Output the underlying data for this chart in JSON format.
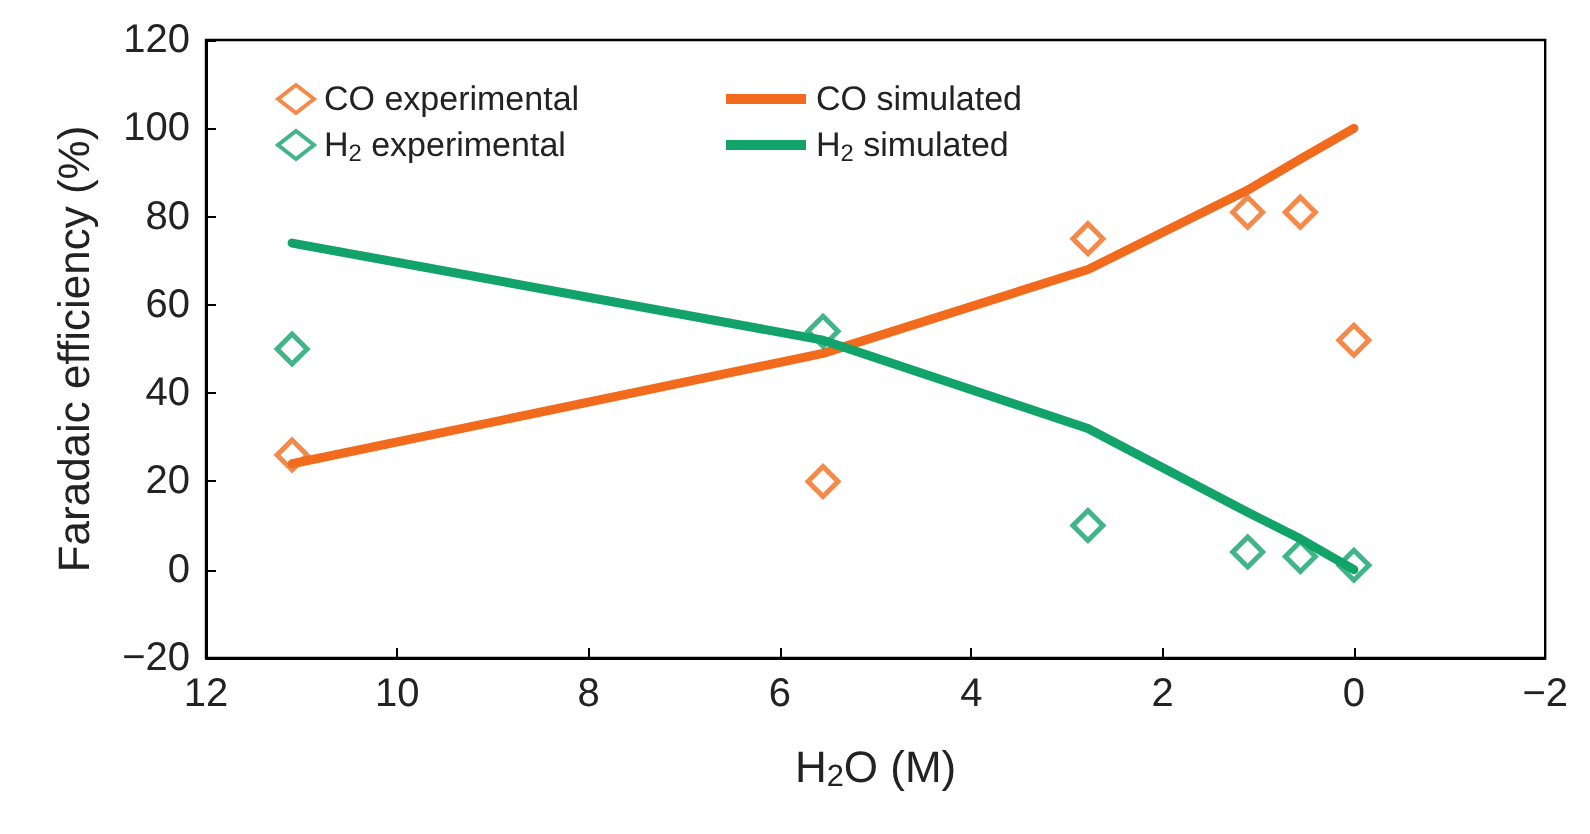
{
  "chart_data": {
    "type": "scatter",
    "xlabel": "H$_{2}$O (M)",
    "ylabel": "Faradaic efficiency (%)",
    "xlim": [
      12,
      -2
    ],
    "xticks": [
      12,
      10,
      8,
      6,
      4,
      2,
      0,
      -2
    ],
    "ylim": [
      -20,
      120
    ],
    "yticks": [
      -20,
      0,
      20,
      40,
      60,
      80,
      100,
      120
    ],
    "grid": false,
    "legend": "top left",
    "series": [
      {
        "name": "CO experimental",
        "marker": "diamond",
        "color": "#f26b1d",
        "x": [
          11.1,
          5.55,
          2.78,
          1.11,
          0.56,
          0
        ],
        "values": [
          26,
          20,
          75,
          81,
          81,
          52
        ]
      },
      {
        "name": "H$_{2}$ experimental",
        "marker": "diamond",
        "color": "#12a36a",
        "x": [
          11.1,
          5.55,
          2.78,
          1.11,
          0.56,
          0
        ],
        "values": [
          50,
          54,
          10,
          4,
          3,
          1
        ]
      },
      {
        "name": "CO simulated",
        "type": "line",
        "marker": "none",
        "line_style": "solid",
        "color": "#f26b1d",
        "x": [
          11.1,
          5.55,
          2.78,
          1.11,
          0.56,
          0
        ],
        "values": [
          24,
          49,
          68,
          86,
          93,
          100
        ]
      },
      {
        "name": "H$_{2}$ simulated",
        "type": "line",
        "marker": "none",
        "line_style": "solid",
        "color": "#12a36a",
        "x": [
          11.1,
          5.55,
          2.78,
          1.11,
          0.56,
          0
        ],
        "values": [
          74,
          52,
          32,
          13,
          7,
          0
        ]
      }
    ]
  }
}
